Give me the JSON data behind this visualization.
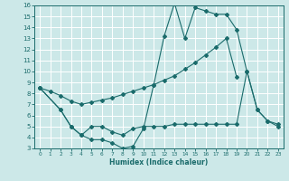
{
  "title": "",
  "xlabel": "Humidex (Indice chaleur)",
  "xlim": [
    -0.5,
    23.5
  ],
  "ylim": [
    3,
    16
  ],
  "xticks": [
    0,
    1,
    2,
    3,
    4,
    5,
    6,
    7,
    8,
    9,
    10,
    11,
    12,
    13,
    14,
    15,
    16,
    17,
    18,
    19,
    20,
    21,
    22,
    23
  ],
  "yticks": [
    3,
    4,
    5,
    6,
    7,
    8,
    9,
    10,
    11,
    12,
    13,
    14,
    15,
    16
  ],
  "bg_color": "#cce8e8",
  "grid_color": "#ffffff",
  "line_color": "#1a6b6b",
  "line1_x": [
    0,
    1,
    2,
    3,
    4,
    5,
    6,
    7,
    8,
    9,
    10,
    11,
    12,
    13,
    14,
    15,
    16,
    17,
    18,
    19
  ],
  "line1_y": [
    8.5,
    8.2,
    7.8,
    7.3,
    7.0,
    7.2,
    7.4,
    7.6,
    7.9,
    8.2,
    8.5,
    8.8,
    9.2,
    9.6,
    10.2,
    10.8,
    11.5,
    12.2,
    13.0,
    9.5
  ],
  "line2_x": [
    0,
    2,
    3,
    4,
    5,
    6,
    7,
    8,
    9,
    10,
    11,
    12,
    13,
    14,
    15,
    16,
    17,
    18,
    19,
    20,
    21,
    22,
    23
  ],
  "line2_y": [
    8.5,
    6.5,
    5.0,
    4.2,
    5.0,
    5.0,
    4.5,
    4.2,
    4.8,
    5.0,
    5.0,
    5.0,
    5.2,
    5.2,
    5.2,
    5.2,
    5.2,
    5.2,
    5.2,
    10.0,
    6.5,
    5.5,
    5.2
  ],
  "line3_x": [
    0,
    2,
    3,
    4,
    5,
    6,
    7,
    8,
    9,
    10,
    11,
    12,
    13,
    14,
    15,
    16,
    17,
    18,
    19,
    20,
    21,
    22,
    23
  ],
  "line3_y": [
    8.5,
    6.5,
    5.0,
    4.2,
    3.8,
    3.8,
    3.5,
    3.0,
    3.2,
    4.8,
    8.8,
    13.2,
    16.2,
    13.0,
    15.8,
    15.5,
    15.2,
    15.2,
    13.8,
    10.0,
    6.5,
    5.5,
    5.0
  ],
  "tick_fontsize": 5,
  "xlabel_fontsize": 5.5
}
